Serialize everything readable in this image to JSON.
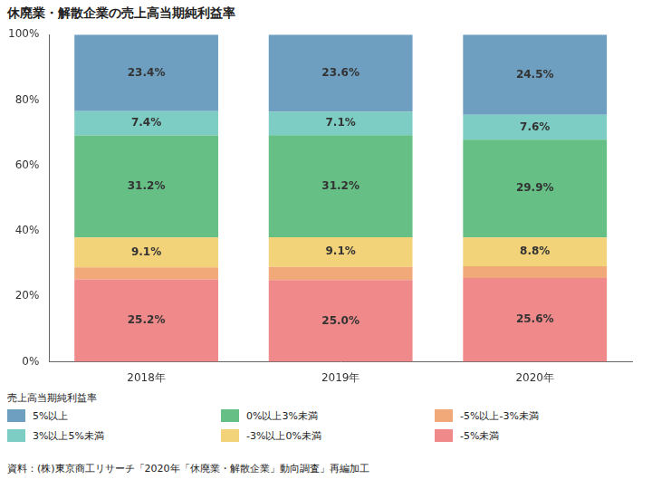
{
  "chart_data": {
    "type": "bar",
    "title": "休廃業・解散企業の売上高当期純利益率",
    "categories": [
      "2018年",
      "2019年",
      "2020年"
    ],
    "stacked": true,
    "data_labels": true,
    "grid": false,
    "legend": "bottom",
    "legend_title": "売上高当期純利益率",
    "source": "資料：(株)東京商工リサーチ「2020年「休廃業・解散企業」動向調査」再編加工",
    "ylim": [
      0,
      100
    ],
    "yticks": [
      {
        "value": 0,
        "label": "0%"
      },
      {
        "value": 20,
        "label": "20%"
      },
      {
        "value": 40,
        "label": "40%"
      },
      {
        "value": 60,
        "label": "60%"
      },
      {
        "value": 80,
        "label": "80%"
      },
      {
        "value": 100,
        "label": "100%"
      }
    ],
    "series": [
      {
        "name": "5%以上",
        "color": "#6f9fc0",
        "values": [
          23.4,
          23.6,
          24.5
        ],
        "value_labels": [
          "23.4%",
          "23.6%",
          "24.5%"
        ]
      },
      {
        "name": "3%以上5%未満",
        "color": "#7ecdc4",
        "values": [
          7.4,
          7.1,
          7.6
        ],
        "value_labels": [
          "7.4%",
          "7.1%",
          "7.6%"
        ]
      },
      {
        "name": "0%以上3%未満",
        "color": "#66bf85",
        "values": [
          31.2,
          31.2,
          29.9
        ],
        "value_labels": [
          "31.2%",
          "31.2%",
          "29.9%"
        ]
      },
      {
        "name": "-3%以上0%未満",
        "color": "#f2d37a",
        "values": [
          9.1,
          9.1,
          8.8
        ],
        "value_labels": [
          "9.1%",
          "9.1%",
          "8.8%"
        ]
      },
      {
        "name": "-5%以上-3%未満",
        "color": "#f2a97a",
        "values": [
          3.7,
          4.0,
          3.6
        ],
        "data_labels": false
      },
      {
        "name": "-5%未満",
        "color": "#f08a8a",
        "values": [
          25.2,
          25.0,
          25.6
        ],
        "value_labels": [
          "25.2%",
          "25.0%",
          "25.6%"
        ]
      }
    ]
  }
}
